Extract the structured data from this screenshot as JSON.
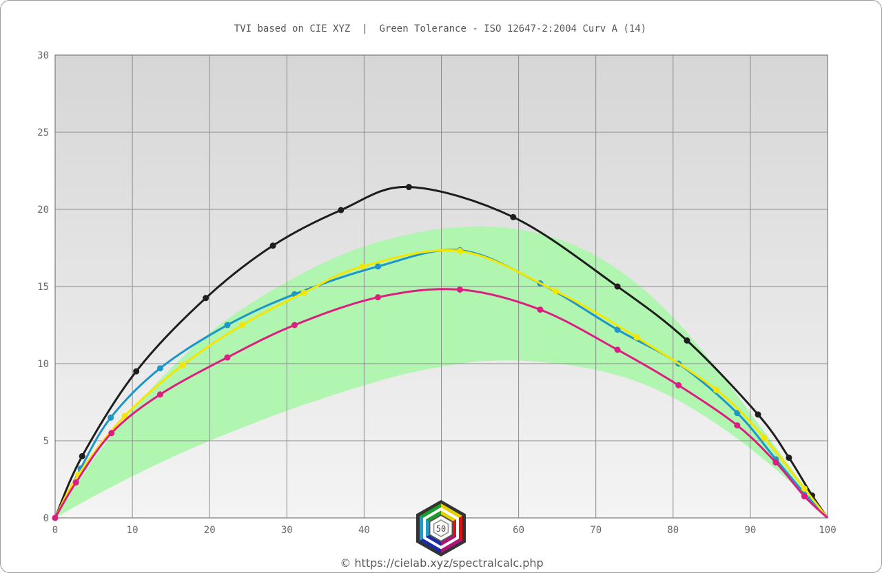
{
  "chart_data": {
    "type": "line",
    "title": "TVI based on CIE XYZ  |  Green Tolerance - ISO 12647-2:2004 Curv A (14)",
    "xlabel": "",
    "ylabel": "",
    "xlim": [
      0,
      100
    ],
    "ylim": [
      0,
      30
    ],
    "x_ticks": [
      "0",
      "10",
      "20",
      "30",
      "40",
      "50",
      "60",
      "70",
      "80",
      "90",
      "100"
    ],
    "y_ticks": [
      "0",
      "5",
      "10",
      "15",
      "20",
      "25",
      "30"
    ],
    "grid": true,
    "tolerance_band": {
      "color": "#b0f5b0",
      "x": [
        0,
        5,
        10,
        15,
        20,
        25,
        30,
        35,
        40,
        45,
        50,
        55,
        60,
        65,
        70,
        75,
        80,
        85,
        90,
        95,
        100
      ],
      "lower": [
        0,
        1.4,
        2.7,
        3.9,
        5.0,
        6.0,
        6.95,
        7.8,
        8.6,
        9.3,
        9.8,
        10.15,
        10.2,
        10.0,
        9.6,
        8.9,
        7.8,
        6.3,
        4.5,
        2.4,
        0
      ],
      "upper": [
        0,
        3.8,
        7.0,
        9.7,
        12.0,
        13.8,
        15.3,
        16.6,
        17.6,
        18.3,
        18.75,
        18.9,
        18.7,
        18.1,
        17.0,
        15.3,
        13.0,
        10.1,
        6.8,
        3.4,
        0
      ]
    },
    "series": [
      {
        "color": "#1e1e1e",
        "x": [
          0,
          3.5,
          10.5,
          19.5,
          28.2,
          37,
          45.8,
          59.3,
          72.8,
          81.8,
          91,
          95,
          98
        ],
        "y": [
          0,
          4.0,
          9.5,
          14.25,
          17.65,
          19.95,
          21.45,
          19.5,
          15.0,
          11.5,
          6.7,
          3.9,
          1.45
        ]
      },
      {
        "color": "#1e96c8",
        "x": [
          0,
          3.3,
          7.2,
          13.6,
          22.3,
          31,
          41.8,
          52.4,
          62.8,
          72.8,
          80.7,
          88.3,
          93.3,
          97
        ],
        "y": [
          0,
          3.2,
          6.5,
          9.7,
          12.5,
          14.5,
          16.3,
          17.35,
          15.2,
          12.2,
          10.0,
          6.8,
          3.8,
          1.6
        ]
      },
      {
        "color": "#f5e600",
        "x": [
          0,
          3,
          9,
          16.5,
          24.2,
          32.2,
          39.8,
          52.4,
          64.8,
          75.3,
          85.6,
          91.8,
          97
        ],
        "y": [
          0,
          2.8,
          6.6,
          9.9,
          12.5,
          14.6,
          16.3,
          17.3,
          14.7,
          11.7,
          8.3,
          5.2,
          1.9
        ]
      },
      {
        "color": "#dc1e82",
        "x": [
          0,
          2.7,
          7.3,
          13.6,
          22.3,
          31,
          41.8,
          52.4,
          62.8,
          72.8,
          80.7,
          88.3,
          93.3,
          97
        ],
        "y": [
          0,
          2.3,
          5.5,
          8.0,
          10.4,
          12.5,
          14.3,
          14.8,
          13.5,
          10.9,
          8.6,
          6.0,
          3.6,
          1.4
        ]
      }
    ],
    "footer": "© https://cielab.xyz/spectralcalc.php",
    "logo_text": "50"
  },
  "colors": {
    "plot_top": "#d6d6d6",
    "plot_bottom": "#f4f4f4",
    "grid": "#8c8c8c",
    "axis_text": "#6a6a6a"
  }
}
